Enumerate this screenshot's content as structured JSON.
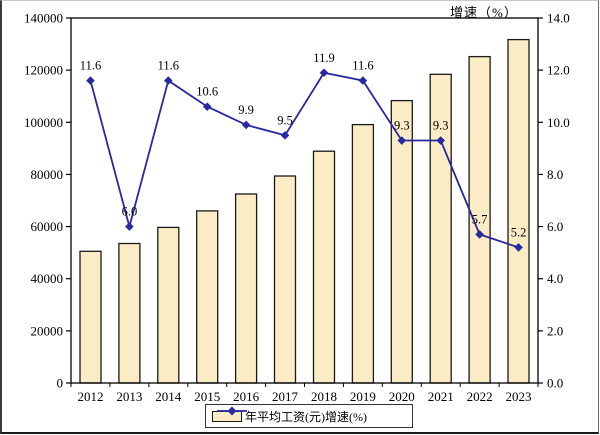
{
  "chart_data": {
    "type": "bar+line",
    "title": "",
    "categories": [
      "2012",
      "2013",
      "2014",
      "2015",
      "2016",
      "2017",
      "2018",
      "2019",
      "2020",
      "2021",
      "2022",
      "2023"
    ],
    "series": [
      {
        "name": "年平均工资(元)",
        "type": "bar",
        "axis": "left",
        "values": [
          50500,
          53500,
          59700,
          66000,
          72500,
          79400,
          88900,
          99100,
          108300,
          118400,
          125200,
          131700
        ]
      },
      {
        "name": "增速(%)",
        "type": "line",
        "axis": "right",
        "values": [
          11.6,
          6.0,
          11.6,
          10.6,
          9.9,
          9.5,
          11.9,
          11.6,
          9.3,
          9.3,
          5.7,
          5.2
        ],
        "point_labels": [
          "11.6",
          "6.0",
          "11.6",
          "10.6",
          "9.9",
          "9.5",
          "11.9",
          "11.6",
          "9.3",
          "9.3",
          "5.7",
          "5.2"
        ]
      }
    ],
    "left_axis": {
      "title": "",
      "min": 0,
      "max": 140000,
      "tick_values": [
        0,
        20000,
        40000,
        60000,
        80000,
        100000,
        120000,
        140000
      ],
      "tick_labels": [
        "0",
        "20000",
        "40000",
        "60000",
        "80000",
        "100000",
        "120000",
        "140000"
      ]
    },
    "right_axis": {
      "title": "增速（%）",
      "min": 0,
      "max": 14,
      "tick_values": [
        0,
        2,
        4,
        6,
        8,
        10,
        12,
        14
      ],
      "tick_labels": [
        "0.0",
        "2.0",
        "4.0",
        "6.0",
        "8.0",
        "10.0",
        "12.0",
        "14.0"
      ]
    },
    "legend": {
      "position": "bottom-center",
      "items": [
        {
          "label": "年平均工资(元)",
          "marker": "bar-swatch"
        },
        {
          "label": "增速(%)",
          "marker": "line-diamond-swatch"
        }
      ]
    },
    "grid": "off",
    "colors": {
      "bar_fill": "#FBECC5",
      "bar_border": "#1a1a1a",
      "line": "#2828A0",
      "text": "#000000",
      "plot_border": "#000000",
      "background": "#ffffff"
    }
  }
}
